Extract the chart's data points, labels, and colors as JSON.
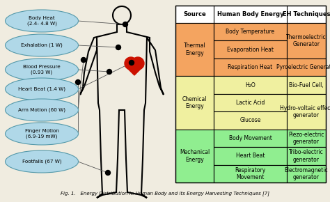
{
  "title": "Fig. 1.   Energy Distribution in Human Body and its Energy Harvesting Techniques [7]",
  "bg_color": "#f0ece0",
  "table_header_bg": "#ffffff",
  "section_colors": [
    "#f4a460",
    "#f0f0a0",
    "#90ee90"
  ],
  "headers": [
    "Source",
    "Human Body Energy",
    "EH Techniques"
  ],
  "sections": [
    {
      "source": "Thermal\nEnergy",
      "body_energies": [
        "Body Temperature",
        "Evaporation Heat",
        "Respiration Heat"
      ],
      "eh_merged": [
        [
          0,
          1
        ],
        [
          2
        ]
      ],
      "eh_texts": [
        "Thermoelectric\nGenerator",
        "Pyroelectric Generator"
      ]
    },
    {
      "source": "Chemical\nEnergy",
      "body_energies": [
        "H₂O",
        "Lactic Acid",
        "Glucose"
      ],
      "eh_merged": [
        [
          0
        ],
        [
          1,
          2
        ]
      ],
      "eh_texts": [
        "Bio-Fuel Cell,",
        "Hydro-voltaic effect\ngenerator"
      ]
    },
    {
      "source": "Mechanical\nEnergy",
      "body_energies": [
        "Body Movement",
        "Heart Beat",
        "Respiratory\nMovement"
      ],
      "eh_merged": [
        [
          0
        ],
        [
          1
        ],
        [
          2
        ]
      ],
      "eh_texts": [
        "Piezo-electric\ngenerator",
        "Tribo-electric\ngenerator",
        "Electromagnetic\ngenerator"
      ]
    }
  ],
  "labels": [
    "Body Heat\n(2.4- 4.8 W)",
    "Exhalation (1 W)",
    "Blood Pressure\n(0.93 W)",
    "Heart Beat (1.4 W)",
    "Arm Motion (60 W)",
    "Finger Motion\n(6.9-19 mW)",
    "Footfalls (67 W)"
  ]
}
